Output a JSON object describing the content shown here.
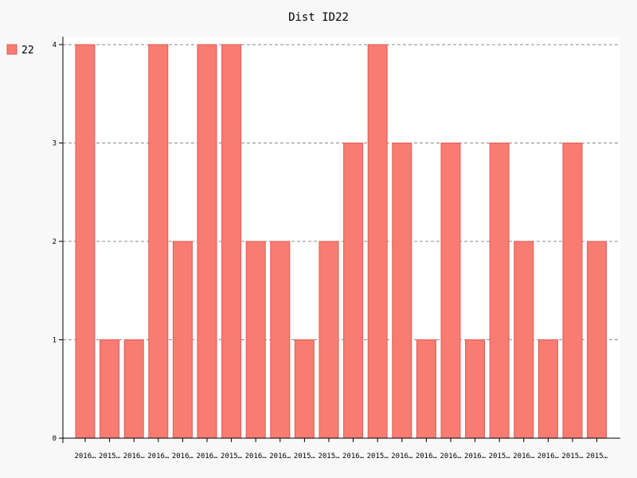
{
  "chart_data": {
    "type": "bar",
    "title": "Dist ID22",
    "xlabel": "",
    "ylabel": "",
    "categories": [
      "2016…",
      "2015…",
      "2016…",
      "2016…",
      "2016…",
      "2016…",
      "2015…",
      "2016…",
      "2016…",
      "2015…",
      "2015…",
      "2016…",
      "2015…",
      "2016…",
      "2016…",
      "2016…",
      "2016…",
      "2015…",
      "2016…",
      "2016…",
      "2015…",
      "2015…"
    ],
    "series": [
      {
        "name": "22",
        "values": [
          4,
          1,
          1,
          4,
          2,
          4,
          4,
          2,
          2,
          1,
          2,
          3,
          4,
          3,
          1,
          3,
          1,
          3,
          2,
          1,
          3,
          2
        ]
      }
    ],
    "yticks": [
      "0",
      "1",
      "2",
      "3",
      "4"
    ],
    "ylim": [
      0,
      4
    ],
    "grid": "horizontal dashed",
    "legend_position": "top-left",
    "colors": {
      "bar_fill": "#f87c72",
      "bar_stroke": "#e05a50",
      "plot_background": "#ffffff",
      "page_background": "#f8f8f8",
      "grid": "#888888",
      "axis": "#000000"
    }
  }
}
